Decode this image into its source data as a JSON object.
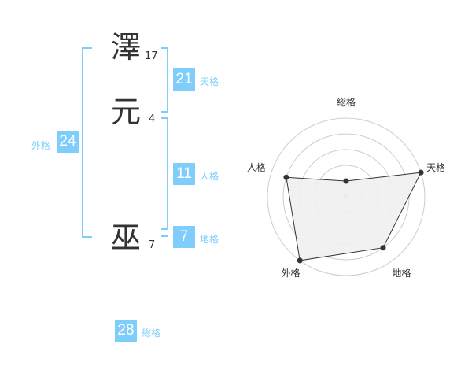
{
  "name": {
    "chars": [
      {
        "char": "澤",
        "strokes": "17"
      },
      {
        "char": "元",
        "strokes": "4"
      },
      {
        "char": "巫",
        "strokes": "7"
      }
    ]
  },
  "fortunes": {
    "tenkaku": {
      "label": "天格",
      "value": "21"
    },
    "jinkaku": {
      "label": "人格",
      "value": "11"
    },
    "chikaku": {
      "label": "地格",
      "value": "7"
    },
    "gaikaku": {
      "label": "外格",
      "value": "24"
    },
    "soukaku": {
      "label": "総格",
      "value": "28"
    }
  },
  "colors": {
    "accent": "#7fcdfb",
    "radar_fill": "#f0f0f0",
    "radar_line": "#333333",
    "ring": "#cccccc"
  },
  "chart_data": {
    "type": "radar",
    "axes": [
      "総格",
      "天格",
      "地格",
      "外格",
      "人格"
    ],
    "values": [
      1,
      5,
      4,
      5,
      4
    ],
    "range": [
      0,
      5
    ],
    "rings": 5
  }
}
